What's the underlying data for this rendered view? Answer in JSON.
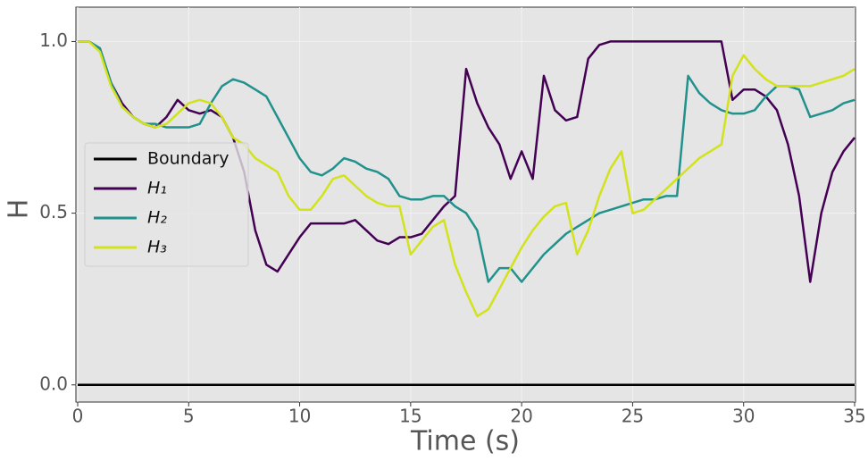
{
  "chart_data": {
    "type": "line",
    "x_label": "Time (s)",
    "y_label": "H",
    "x": [
      0,
      0.5,
      1,
      1.5,
      2,
      2.5,
      3,
      3.5,
      4,
      4.5,
      5,
      5.5,
      6,
      6.5,
      7,
      7.5,
      8,
      8.5,
      9,
      9.5,
      10,
      10.5,
      11,
      11.5,
      12,
      12.5,
      13,
      13.5,
      14,
      14.5,
      15,
      15.5,
      16,
      16.5,
      17,
      17.5,
      18,
      18.5,
      19,
      19.5,
      20,
      20.5,
      21,
      21.5,
      22,
      22.5,
      23,
      23.5,
      24,
      24.5,
      25,
      25.5,
      26,
      26.5,
      27,
      27.5,
      28,
      28.5,
      29,
      29.5,
      30,
      30.5,
      31,
      31.5,
      32,
      32.5,
      33,
      33.5,
      34,
      34.5,
      35
    ],
    "series": [
      {
        "name": "Boundary",
        "color": "#000000",
        "values": [
          0,
          0,
          0,
          0,
          0,
          0,
          0,
          0,
          0,
          0,
          0,
          0,
          0,
          0,
          0,
          0,
          0,
          0,
          0,
          0,
          0,
          0,
          0,
          0,
          0,
          0,
          0,
          0,
          0,
          0,
          0,
          0,
          0,
          0,
          0,
          0,
          0,
          0,
          0,
          0,
          0,
          0,
          0,
          0,
          0,
          0,
          0,
          0,
          0,
          0,
          0,
          0,
          0,
          0,
          0,
          0,
          0,
          0,
          0,
          0,
          0,
          0,
          0,
          0,
          0,
          0,
          0,
          0,
          0,
          0,
          0
        ]
      },
      {
        "name": "H₁",
        "color": "#440154",
        "values": [
          1.0,
          1.0,
          0.98,
          0.88,
          0.82,
          0.78,
          0.76,
          0.75,
          0.78,
          0.83,
          0.8,
          0.79,
          0.8,
          0.78,
          0.72,
          0.62,
          0.45,
          0.35,
          0.33,
          0.38,
          0.43,
          0.47,
          0.47,
          0.47,
          0.47,
          0.48,
          0.45,
          0.42,
          0.41,
          0.43,
          0.43,
          0.44,
          0.48,
          0.52,
          0.55,
          0.92,
          0.82,
          0.75,
          0.7,
          0.6,
          0.68,
          0.6,
          0.9,
          0.8,
          0.77,
          0.78,
          0.95,
          0.99,
          1.0,
          1.0,
          1.0,
          1.0,
          1.0,
          1.0,
          1.0,
          1.0,
          1.0,
          1.0,
          1.0,
          0.83,
          0.86,
          0.86,
          0.84,
          0.8,
          0.7,
          0.55,
          0.3,
          0.5,
          0.62,
          0.68,
          0.72
        ]
      },
      {
        "name": "H₂",
        "color": "#21918c",
        "values": [
          1.0,
          1.0,
          0.98,
          0.88,
          0.81,
          0.78,
          0.76,
          0.76,
          0.75,
          0.75,
          0.75,
          0.76,
          0.82,
          0.87,
          0.89,
          0.88,
          0.86,
          0.84,
          0.78,
          0.72,
          0.66,
          0.62,
          0.61,
          0.63,
          0.66,
          0.65,
          0.63,
          0.62,
          0.6,
          0.55,
          0.54,
          0.54,
          0.55,
          0.55,
          0.52,
          0.5,
          0.45,
          0.3,
          0.34,
          0.34,
          0.3,
          0.34,
          0.38,
          0.41,
          0.44,
          0.46,
          0.48,
          0.5,
          0.51,
          0.52,
          0.53,
          0.54,
          0.54,
          0.55,
          0.55,
          0.9,
          0.85,
          0.82,
          0.8,
          0.79,
          0.79,
          0.8,
          0.84,
          0.87,
          0.87,
          0.86,
          0.78,
          0.79,
          0.8,
          0.82,
          0.83
        ]
      },
      {
        "name": "H₃",
        "color": "#d2e21b",
        "values": [
          1.0,
          1.0,
          0.97,
          0.87,
          0.81,
          0.78,
          0.76,
          0.75,
          0.76,
          0.79,
          0.82,
          0.83,
          0.82,
          0.78,
          0.72,
          0.7,
          0.66,
          0.64,
          0.62,
          0.55,
          0.51,
          0.51,
          0.55,
          0.6,
          0.61,
          0.58,
          0.55,
          0.53,
          0.52,
          0.52,
          0.38,
          0.42,
          0.46,
          0.48,
          0.35,
          0.27,
          0.2,
          0.22,
          0.28,
          0.34,
          0.4,
          0.45,
          0.49,
          0.52,
          0.53,
          0.38,
          0.45,
          0.55,
          0.63,
          0.68,
          0.5,
          0.51,
          0.54,
          0.57,
          0.6,
          0.63,
          0.66,
          0.68,
          0.7,
          0.9,
          0.96,
          0.92,
          0.89,
          0.87,
          0.87,
          0.87,
          0.87,
          0.88,
          0.89,
          0.9,
          0.92
        ]
      }
    ],
    "xlim": [
      0,
      35
    ],
    "xticks": [
      0,
      5,
      10,
      15,
      20,
      25,
      30,
      35
    ],
    "ylim": [
      -0.05,
      1.1
    ],
    "yticks": [
      {
        "value": 0,
        "label": "0.0"
      },
      {
        "value": 0.5,
        "label": "0.5"
      },
      {
        "value": 1,
        "label": "1.0"
      }
    ],
    "grid": true,
    "legend": "center left"
  }
}
